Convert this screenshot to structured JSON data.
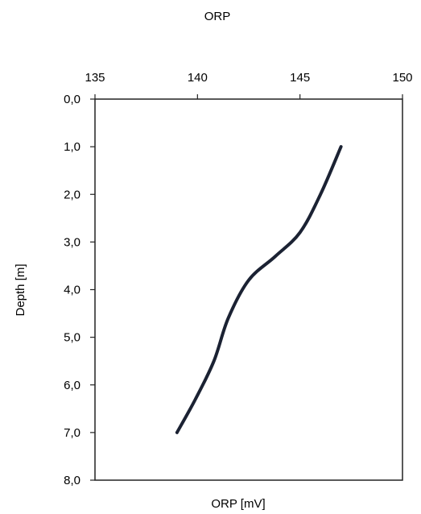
{
  "chart_data": {
    "type": "line",
    "title": "ORP",
    "xlabel": "ORP [mV]",
    "ylabel": "Depth [m]",
    "xlim": [
      135,
      150
    ],
    "ylim": [
      0,
      8
    ],
    "y_inverted": true,
    "x_axis_position": "top",
    "x_ticks": [
      135,
      140,
      145,
      150
    ],
    "x_tick_labels": [
      "135",
      "140",
      "145",
      "150"
    ],
    "y_ticks": [
      0,
      1,
      2,
      3,
      4,
      5,
      6,
      7,
      8
    ],
    "y_tick_labels": [
      "0,0",
      "1,0",
      "2,0",
      "3,0",
      "4,0",
      "5,0",
      "6,0",
      "7,0",
      "8,0"
    ],
    "grid": false,
    "series": [
      {
        "color": "#1b2233",
        "points": [
          {
            "x": 147.0,
            "y": 1.0
          },
          {
            "x": 146.0,
            "y": 2.0
          },
          {
            "x": 145.0,
            "y": 2.8
          },
          {
            "x": 143.8,
            "y": 3.3
          },
          {
            "x": 142.5,
            "y": 3.8
          },
          {
            "x": 141.5,
            "y": 4.6
          },
          {
            "x": 140.8,
            "y": 5.5
          },
          {
            "x": 139.9,
            "y": 6.3
          },
          {
            "x": 139.0,
            "y": 7.0
          }
        ]
      }
    ]
  }
}
